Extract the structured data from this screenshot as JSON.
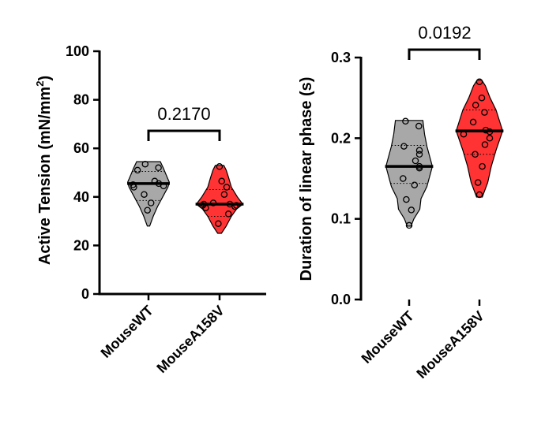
{
  "chart_data": [
    {
      "type": "violin",
      "ylabel_main": "Active Tension (mN/mm",
      "ylabel_sup": "2",
      "ylabel_end": ")",
      "ylim": [
        0,
        100
      ],
      "yticks": [
        0,
        20,
        40,
        60,
        80,
        100
      ],
      "categories": [
        "MouseWT",
        "MouseA158V"
      ],
      "colors": [
        "#a8a8a8",
        "#ff3333"
      ],
      "series": [
        {
          "name": "MouseWT",
          "min": 28,
          "max": 54.5,
          "q1": 38.5,
          "median": 45.5,
          "q3": 50.5,
          "points": [
            53.5,
            52,
            51,
            46.5,
            45.5,
            45,
            44.5,
            44,
            41,
            37.5,
            34.5
          ],
          "profile": [
            [
              28,
              0.05
            ],
            [
              32,
              0.2
            ],
            [
              36,
              0.38
            ],
            [
              40,
              0.6
            ],
            [
              44,
              0.82
            ],
            [
              46,
              0.88
            ],
            [
              49,
              0.75
            ],
            [
              52,
              0.62
            ],
            [
              54.5,
              0.5
            ]
          ]
        },
        {
          "name": "MouseA158V",
          "min": 25,
          "max": 53,
          "q1": 32,
          "median": 37,
          "q3": 43,
          "points": [
            52.5,
            46.5,
            44,
            41,
            37.5,
            37,
            37,
            36.5,
            36.5,
            36,
            35.5,
            33,
            29
          ],
          "profile": [
            [
              25,
              0.08
            ],
            [
              28,
              0.28
            ],
            [
              32,
              0.5
            ],
            [
              35,
              0.72
            ],
            [
              37,
              0.98
            ],
            [
              40,
              0.75
            ],
            [
              44,
              0.5
            ],
            [
              48,
              0.38
            ],
            [
              51,
              0.28
            ],
            [
              53,
              0.18
            ]
          ]
        }
      ],
      "comparison": {
        "label": "0.2170"
      }
    },
    {
      "type": "violin",
      "ylabel_main": "Duration of linear phase (s)",
      "ylim": [
        0.0,
        0.3
      ],
      "yticks": [
        "0.0",
        "0.1",
        "0.2",
        "0.3"
      ],
      "categories": [
        "MouseWT",
        "MouseA158V"
      ],
      "colors": [
        "#a8a8a8",
        "#ff3333"
      ],
      "series": [
        {
          "name": "MouseWT",
          "min": 0.091,
          "max": 0.222,
          "q1": 0.144,
          "median": 0.165,
          "q3": 0.191,
          "points": [
            0.221,
            0.215,
            0.19,
            0.185,
            0.18,
            0.172,
            0.165,
            0.163,
            0.15,
            0.142,
            0.124,
            0.111,
            0.092
          ],
          "profile": [
            [
              0.091,
              0.08
            ],
            [
              0.1,
              0.2
            ],
            [
              0.112,
              0.45
            ],
            [
              0.125,
              0.5
            ],
            [
              0.14,
              0.75
            ],
            [
              0.165,
              0.98
            ],
            [
              0.19,
              0.75
            ],
            [
              0.205,
              0.65
            ],
            [
              0.222,
              0.58
            ]
          ]
        },
        {
          "name": "MouseA158V",
          "min": 0.127,
          "max": 0.272,
          "q1": 0.18,
          "median": 0.209,
          "q3": 0.235,
          "points": [
            0.27,
            0.25,
            0.241,
            0.232,
            0.22,
            0.21,
            0.208,
            0.205,
            0.2,
            0.192,
            0.18,
            0.165,
            0.145,
            0.13
          ],
          "profile": [
            [
              0.127,
              0.12
            ],
            [
              0.145,
              0.35
            ],
            [
              0.165,
              0.5
            ],
            [
              0.185,
              0.7
            ],
            [
              0.209,
              0.98
            ],
            [
              0.235,
              0.7
            ],
            [
              0.25,
              0.45
            ],
            [
              0.265,
              0.25
            ],
            [
              0.272,
              0.1
            ]
          ]
        }
      ],
      "comparison": {
        "label": "0.0192"
      }
    }
  ]
}
